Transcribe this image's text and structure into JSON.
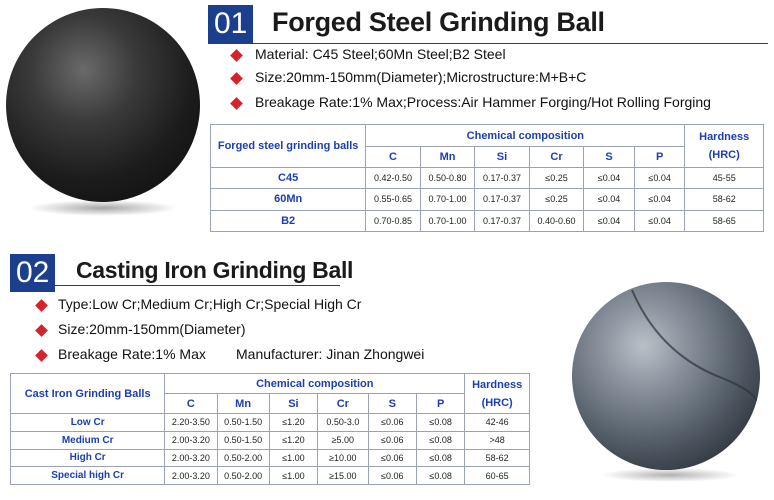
{
  "section1": {
    "number": "01",
    "title": "Forged Steel Grinding Ball",
    "bullets": [
      "Material: C45 Steel;60Mn Steel;B2 Steel",
      "Size:20mm-150mm(Diameter);Microstructure:M+B+C",
      "Breakage Rate:1% Max;Process:Air Hammer Forging/Hot Rolling Forging"
    ],
    "table": {
      "name_header": "Forged steel grinding balls",
      "group_header": "Chemical composition",
      "hardness_header_line1": "Hardness",
      "hardness_header_line2": "(HRC)",
      "columns": [
        "C",
        "Mn",
        "Si",
        "Cr",
        "S",
        "P"
      ],
      "rows": [
        {
          "name": "C45",
          "values": [
            "0.42-0.50",
            "0.50-0.80",
            "0.17-0.37",
            "≤0.25",
            "≤0.04",
            "≤0.04"
          ],
          "hardness": "45-55"
        },
        {
          "name": "60Mn",
          "values": [
            "0.55-0.65",
            "0.70-1.00",
            "0.17-0.37",
            "≤0.25",
            "≤0.04",
            "≤0.04"
          ],
          "hardness": "58-62"
        },
        {
          "name": "B2",
          "values": [
            "0.70-0.85",
            "0.70-1.00",
            "0.17-0.37",
            "0.40-0.60",
            "≤0.04",
            "≤0.04"
          ],
          "hardness": "58-65"
        }
      ]
    }
  },
  "section2": {
    "number": "02",
    "title": "Casting Iron Grinding Ball",
    "bullets": [
      "Type:Low Cr;Medium Cr;High Cr;Special High Cr",
      "Size:20mm-150mm(Diameter)",
      "Breakage Rate:1% Max"
    ],
    "manufacturer": "Manufacturer: Jinan Zhongwei",
    "table": {
      "name_header": "Cast Iron Grinding Balls",
      "group_header": "Chemical composition",
      "hardness_header_line1": "Hardness",
      "hardness_header_line2": "(HRC)",
      "columns": [
        "C",
        "Mn",
        "Si",
        "Cr",
        "S",
        "P"
      ],
      "rows": [
        {
          "name": "Low Cr",
          "values": [
            "2.20-3.50",
            "0.50-1.50",
            "≤1.20",
            "0.50-3.0",
            "≤0.06",
            "≤0.08"
          ],
          "hardness": "42-46"
        },
        {
          "name": "Medium Cr",
          "values": [
            "2.00-3.20",
            "0.50-1.50",
            "≤1.20",
            "≥5.00",
            "≤0.06",
            "≤0.08"
          ],
          "hardness": ">48"
        },
        {
          "name": "High Cr",
          "values": [
            "2.00-3.20",
            "0.50-2.00",
            "≤1.00",
            "≥10.00",
            "≤0.06",
            "≤0.08"
          ],
          "hardness": "58-62"
        },
        {
          "name": "Special high Cr",
          "values": [
            "2.00-3.20",
            "0.50-2.00",
            "≤1.00",
            "≥15.00",
            "≤0.06",
            "≤0.08"
          ],
          "hardness": "60-65"
        }
      ]
    }
  },
  "colors": {
    "accent_blue": "#1b3f8c",
    "bullet_red": "#d6232a",
    "table_text_blue": "#1b3fb0"
  }
}
